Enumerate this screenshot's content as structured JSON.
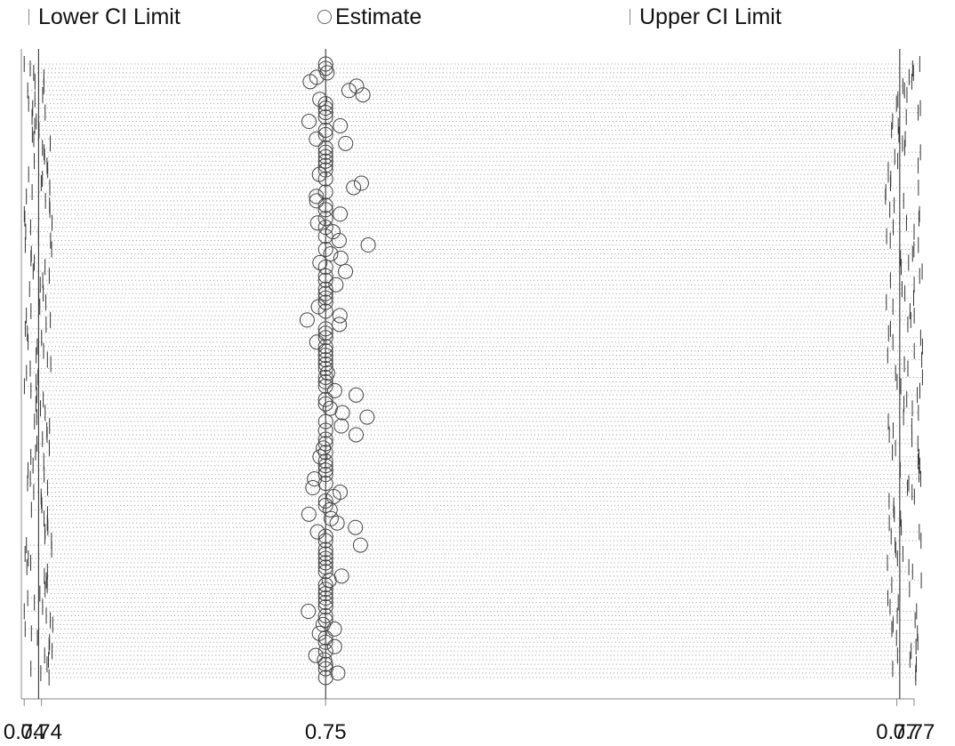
{
  "legend": {
    "lower": "Lower CI Limit",
    "estimate": "Estimate",
    "upper": "Upper CI Limit"
  },
  "chart_data": {
    "type": "scatter",
    "title": "",
    "xlabel": "",
    "ylabel": "",
    "grid": false,
    "legend_position": "top",
    "series": [
      {
        "name": "Lower CI Limit",
        "marker": "tick",
        "summary": {
          "min": 0.7395,
          "max": 0.7405,
          "typical": 0.74
        }
      },
      {
        "name": "Estimate",
        "marker": "circle",
        "summary": {
          "min": 0.7493,
          "max": 0.7515,
          "typical": 0.75
        }
      },
      {
        "name": "Upper CI Limit",
        "marker": "tick",
        "summary": {
          "min": 0.7695,
          "max": 0.7708,
          "typical": 0.77
        }
      }
    ],
    "n_intervals": 140,
    "reference_lines": [
      0.74,
      0.75,
      0.77
    ],
    "x_tick_labels": [
      "0.74",
      "0.74",
      "0.75",
      "0.77",
      "0.77"
    ],
    "x_tick_values": [
      0.7395,
      0.7401,
      0.75,
      0.7699,
      0.7705
    ],
    "xlim": [
      0.7394,
      0.7705
    ],
    "ylim": [
      0,
      1
    ],
    "colors": {
      "axis": "#888888",
      "reference": "#222222",
      "dots": "#999999",
      "circle": "#444444"
    }
  }
}
